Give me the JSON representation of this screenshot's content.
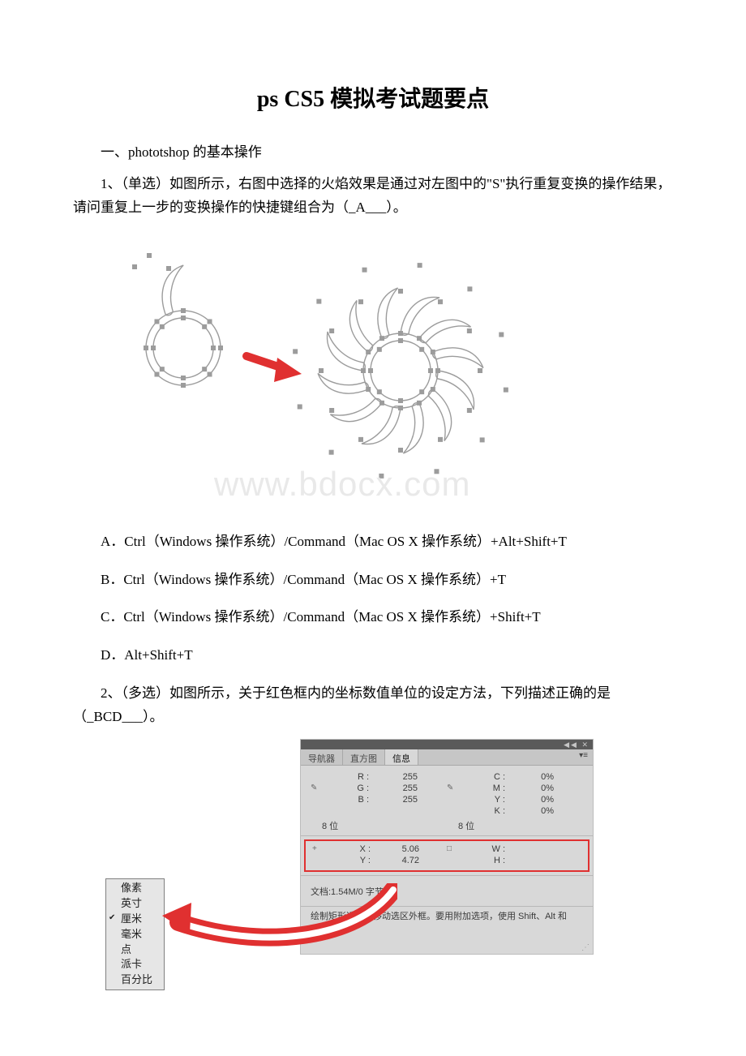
{
  "title": "ps CS5 模拟考试题要点",
  "section1_heading": "一、phototshop 的基本操作",
  "q1": {
    "stem_a": "1、（单选）如图所示，右图中选择的火焰效果是通过对左图中的\"S\"执行重复变换的操作结果，请问重复上一步的变换操作的快捷键组合为（_A___）。",
    "optA": "A．Ctrl（Windows 操作系统）/Command（Mac OS X 操作系统）+Alt+Shift+T",
    "optB": "B．Ctrl（Windows 操作系统）/Command（Mac OS X 操作系统）+T",
    "optC": "C．Ctrl（Windows 操作系统）/Command（Mac OS X 操作系统）+Shift+T",
    "optD": "D．Alt+Shift+T"
  },
  "q2": {
    "stem": "2、（多选）如图所示，关于红色框内的坐标数值单位的设定方法，下列描述正确的是（_BCD___）。"
  },
  "watermark": "www.bdocx.com",
  "fig1": {
    "outer_r": 46,
    "inner_r": 37,
    "flame_count": 12,
    "stroke": "#9c9c9c",
    "handle_fill": "#9c9c9c",
    "arrow_color": "#e03030"
  },
  "info_panel": {
    "tabs": {
      "nav": "导航器",
      "hist": "直方图",
      "info": "信息"
    },
    "rgb": {
      "R": "255",
      "G": "255",
      "B": "255",
      "bits": "8 位"
    },
    "cmyk": {
      "C": "0%",
      "M": "0%",
      "Y": "0%",
      "K": "0%",
      "bits": "8 位"
    },
    "xy": {
      "X": "5.06",
      "Y": "4.72"
    },
    "wh": {
      "W": "",
      "H": ""
    },
    "docsize": "文档:1.54M/0 字节",
    "hint": "绘制矩形选区或移动选区外框。要用附加选项，使用 Shift、Alt 和 Ctrl 键。"
  },
  "units": {
    "items": [
      "像素",
      "英寸",
      "厘米",
      "毫米",
      "点",
      "派卡",
      "百分比"
    ],
    "checked_index": 2
  },
  "colors": {
    "red": "#e03030",
    "panel_bg": "#d8d8d8",
    "panel_tabbar": "#c6c6c6",
    "panel_border": "#bcbcbc",
    "stroke_gray": "#9c9c9c"
  }
}
